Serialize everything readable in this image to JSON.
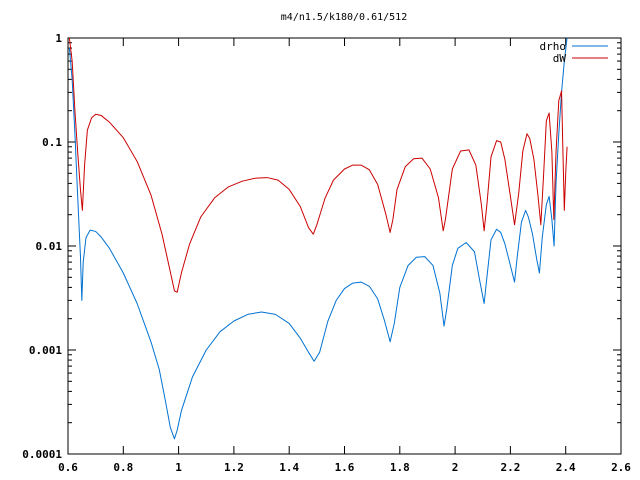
{
  "chart_data": {
    "type": "line",
    "title": "m4/n1.5/k180/0.61/512",
    "xlabel": "",
    "ylabel": "",
    "xlim": [
      0.6,
      2.6
    ],
    "ylim": [
      0.0001,
      1
    ],
    "yscale": "log",
    "grid": false,
    "legend_position": "top-right",
    "xticks": [
      0.6,
      0.8,
      1.0,
      1.2,
      1.4,
      1.6,
      1.8,
      2.0,
      2.2,
      2.4,
      2.6
    ],
    "xtick_labels": [
      "0.6",
      "0.8",
      "1",
      "1.2",
      "1.4",
      "1.6",
      "1.8",
      "2",
      "2.2",
      "2.4",
      "2.6"
    ],
    "yticks": [
      0.0001,
      0.001,
      0.01,
      0.1,
      1
    ],
    "ytick_labels": [
      "0.0001",
      "0.001",
      "0.01",
      "0.1",
      "1"
    ],
    "series": [
      {
        "name": "drho",
        "color": "#0072d2",
        "points": [
          [
            0.605,
            0.8
          ],
          [
            0.615,
            0.4
          ],
          [
            0.625,
            0.12
          ],
          [
            0.635,
            0.03
          ],
          [
            0.645,
            0.008
          ],
          [
            0.65,
            0.003
          ],
          [
            0.655,
            0.007
          ],
          [
            0.665,
            0.012
          ],
          [
            0.68,
            0.0142
          ],
          [
            0.7,
            0.0138
          ],
          [
            0.72,
            0.0122
          ],
          [
            0.75,
            0.0095
          ],
          [
            0.8,
            0.0055
          ],
          [
            0.85,
            0.0028
          ],
          [
            0.9,
            0.0012
          ],
          [
            0.93,
            0.00065
          ],
          [
            0.95,
            0.00035
          ],
          [
            0.97,
            0.00018
          ],
          [
            0.985,
            0.00014
          ],
          [
            0.995,
            0.00017
          ],
          [
            1.01,
            0.00026
          ],
          [
            1.05,
            0.00055
          ],
          [
            1.1,
            0.001
          ],
          [
            1.15,
            0.0015
          ],
          [
            1.2,
            0.0019
          ],
          [
            1.25,
            0.0022
          ],
          [
            1.3,
            0.00232
          ],
          [
            1.35,
            0.0022
          ],
          [
            1.4,
            0.0018
          ],
          [
            1.44,
            0.0013
          ],
          [
            1.47,
            0.00095
          ],
          [
            1.49,
            0.00078
          ],
          [
            1.51,
            0.00095
          ],
          [
            1.54,
            0.0019
          ],
          [
            1.57,
            0.003
          ],
          [
            1.6,
            0.0039
          ],
          [
            1.63,
            0.0044
          ],
          [
            1.66,
            0.0045
          ],
          [
            1.69,
            0.0041
          ],
          [
            1.72,
            0.0031
          ],
          [
            1.745,
            0.0019
          ],
          [
            1.765,
            0.0012
          ],
          [
            1.78,
            0.0018
          ],
          [
            1.8,
            0.004
          ],
          [
            1.83,
            0.0065
          ],
          [
            1.86,
            0.0078
          ],
          [
            1.89,
            0.0079
          ],
          [
            1.92,
            0.0065
          ],
          [
            1.945,
            0.0035
          ],
          [
            1.96,
            0.0017
          ],
          [
            1.97,
            0.0025
          ],
          [
            1.99,
            0.0065
          ],
          [
            2.01,
            0.0095
          ],
          [
            2.04,
            0.0108
          ],
          [
            2.07,
            0.0088
          ],
          [
            2.09,
            0.0045
          ],
          [
            2.105,
            0.0028
          ],
          [
            2.115,
            0.005
          ],
          [
            2.13,
            0.0115
          ],
          [
            2.15,
            0.0145
          ],
          [
            2.165,
            0.0135
          ],
          [
            2.18,
            0.0105
          ],
          [
            2.2,
            0.0065
          ],
          [
            2.215,
            0.0045
          ],
          [
            2.225,
            0.008
          ],
          [
            2.24,
            0.017
          ],
          [
            2.255,
            0.022
          ],
          [
            2.265,
            0.019
          ],
          [
            2.28,
            0.013
          ],
          [
            2.295,
            0.0075
          ],
          [
            2.305,
            0.0055
          ],
          [
            2.315,
            0.012
          ],
          [
            2.33,
            0.025
          ],
          [
            2.34,
            0.03
          ],
          [
            2.35,
            0.018
          ],
          [
            2.358,
            0.01
          ],
          [
            2.365,
            0.04
          ],
          [
            2.375,
            0.12
          ],
          [
            2.385,
            0.3
          ],
          [
            2.395,
            0.6
          ],
          [
            2.405,
            1.0
          ]
        ]
      },
      {
        "name": "dW",
        "color": "#cc0000",
        "points": [
          [
            0.605,
            1.0
          ],
          [
            0.615,
            0.6
          ],
          [
            0.625,
            0.2
          ],
          [
            0.635,
            0.08
          ],
          [
            0.645,
            0.035
          ],
          [
            0.652,
            0.022
          ],
          [
            0.66,
            0.06
          ],
          [
            0.67,
            0.13
          ],
          [
            0.685,
            0.17
          ],
          [
            0.7,
            0.185
          ],
          [
            0.72,
            0.18
          ],
          [
            0.75,
            0.155
          ],
          [
            0.8,
            0.11
          ],
          [
            0.85,
            0.065
          ],
          [
            0.9,
            0.031
          ],
          [
            0.94,
            0.013
          ],
          [
            0.965,
            0.0065
          ],
          [
            0.985,
            0.0037
          ],
          [
            0.995,
            0.0036
          ],
          [
            1.01,
            0.0055
          ],
          [
            1.04,
            0.0105
          ],
          [
            1.08,
            0.019
          ],
          [
            1.13,
            0.029
          ],
          [
            1.18,
            0.037
          ],
          [
            1.23,
            0.042
          ],
          [
            1.28,
            0.045
          ],
          [
            1.32,
            0.0455
          ],
          [
            1.36,
            0.043
          ],
          [
            1.4,
            0.035
          ],
          [
            1.44,
            0.024
          ],
          [
            1.47,
            0.015
          ],
          [
            1.487,
            0.013
          ],
          [
            1.5,
            0.016
          ],
          [
            1.53,
            0.029
          ],
          [
            1.56,
            0.043
          ],
          [
            1.6,
            0.055
          ],
          [
            1.63,
            0.06
          ],
          [
            1.66,
            0.06
          ],
          [
            1.69,
            0.054
          ],
          [
            1.72,
            0.039
          ],
          [
            1.75,
            0.02
          ],
          [
            1.765,
            0.0135
          ],
          [
            1.775,
            0.018
          ],
          [
            1.79,
            0.035
          ],
          [
            1.82,
            0.058
          ],
          [
            1.85,
            0.069
          ],
          [
            1.88,
            0.07
          ],
          [
            1.91,
            0.055
          ],
          [
            1.94,
            0.029
          ],
          [
            1.957,
            0.014
          ],
          [
            1.965,
            0.018
          ],
          [
            1.99,
            0.055
          ],
          [
            2.02,
            0.082
          ],
          [
            2.05,
            0.084
          ],
          [
            2.075,
            0.06
          ],
          [
            2.095,
            0.025
          ],
          [
            2.105,
            0.014
          ],
          [
            2.115,
            0.025
          ],
          [
            2.13,
            0.072
          ],
          [
            2.15,
            0.103
          ],
          [
            2.165,
            0.1
          ],
          [
            2.18,
            0.068
          ],
          [
            2.2,
            0.03
          ],
          [
            2.215,
            0.016
          ],
          [
            2.23,
            0.032
          ],
          [
            2.245,
            0.082
          ],
          [
            2.26,
            0.12
          ],
          [
            2.27,
            0.108
          ],
          [
            2.285,
            0.068
          ],
          [
            2.3,
            0.03
          ],
          [
            2.31,
            0.016
          ],
          [
            2.32,
            0.048
          ],
          [
            2.33,
            0.16
          ],
          [
            2.34,
            0.19
          ],
          [
            2.35,
            0.08
          ],
          [
            2.357,
            0.018
          ],
          [
            2.365,
            0.08
          ],
          [
            2.375,
            0.25
          ],
          [
            2.385,
            0.31
          ],
          [
            2.39,
            0.08
          ],
          [
            2.395,
            0.022
          ],
          [
            2.4,
            0.05
          ],
          [
            2.405,
            0.09
          ]
        ]
      }
    ]
  }
}
